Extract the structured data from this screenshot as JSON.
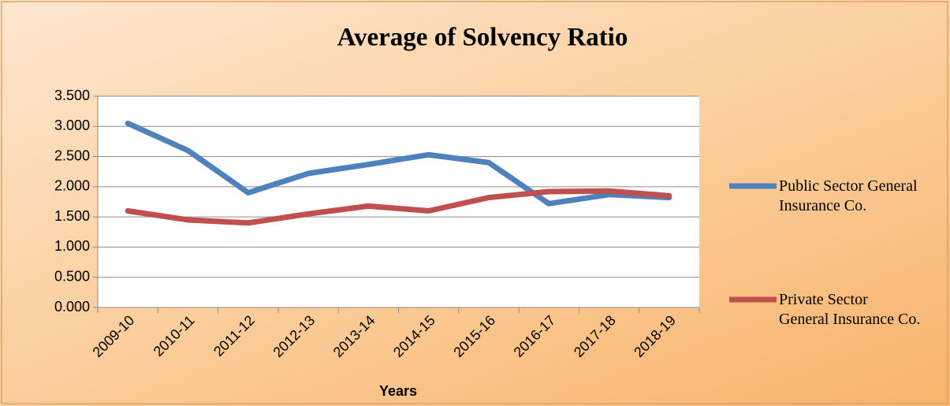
{
  "chart_data": {
    "type": "line",
    "title": "Average of Solvency Ratio",
    "xlabel": "Years",
    "categories": [
      "2009-10",
      "2010-11",
      "2011-12",
      "2012-13",
      "2013-14",
      "2014-15",
      "2015-16",
      "2016-17",
      "2017-18",
      "2018-19"
    ],
    "series": [
      {
        "name": "Public Sector General Insurance Co.",
        "color": "#4f81bd",
        "values": [
          3.05,
          2.6,
          1.9,
          2.22,
          2.37,
          2.53,
          2.4,
          1.72,
          1.87,
          1.82
        ]
      },
      {
        "name": "Private Sector General Insurance Co.",
        "color": "#c0504d",
        "values": [
          1.6,
          1.45,
          1.4,
          1.55,
          1.68,
          1.6,
          1.82,
          1.92,
          1.93,
          1.85
        ]
      }
    ],
    "ylim": [
      0,
      3.5
    ],
    "yticks": [
      {
        "value": 0,
        "label": "0.000"
      },
      {
        "value": 0.5,
        "label": "0.500"
      },
      {
        "value": 1,
        "label": "1.000"
      },
      {
        "value": 1.5,
        "label": "1.500"
      },
      {
        "value": 2,
        "label": "2.000"
      },
      {
        "value": 2.5,
        "label": "2.500"
      },
      {
        "value": 3,
        "label": "3.000"
      },
      {
        "value": 3.5,
        "label": "3.500"
      }
    ],
    "grid": true,
    "legend": "right"
  }
}
